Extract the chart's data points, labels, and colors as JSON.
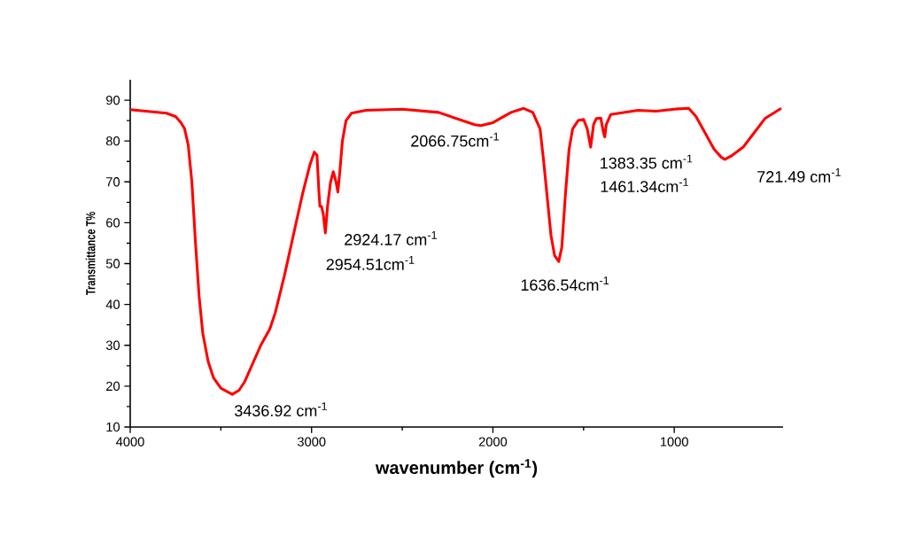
{
  "chart_data": {
    "type": "line",
    "xlabel": "wavenumber (cm$^{-1}$)",
    "ylabel": "Transmittance T%",
    "xlim": [
      4000,
      400
    ],
    "ylim": [
      10,
      95
    ],
    "xticks": [
      4000,
      3000,
      2000,
      1000
    ],
    "yticks": [
      10,
      20,
      30,
      40,
      50,
      60,
      70,
      80,
      90
    ],
    "series": [
      {
        "color": "#ff0000",
        "x": [
          4000,
          3800,
          3750,
          3720,
          3700,
          3680,
          3660,
          3640,
          3620,
          3600,
          3570,
          3540,
          3500,
          3437,
          3400,
          3370,
          3330,
          3280,
          3230,
          3200,
          3150,
          3100,
          3050,
          3010,
          2985,
          2970,
          2960,
          2954,
          2945,
          2935,
          2924,
          2912,
          2895,
          2880,
          2865,
          2855,
          2845,
          2830,
          2810,
          2780,
          2700,
          2500,
          2300,
          2200,
          2100,
          2066,
          2000,
          1900,
          1830,
          1780,
          1740,
          1720,
          1700,
          1680,
          1660,
          1637,
          1620,
          1600,
          1580,
          1560,
          1530,
          1500,
          1480,
          1461,
          1445,
          1430,
          1405,
          1390,
          1383,
          1375,
          1350,
          1200,
          1100,
          1000,
          920,
          880,
          830,
          780,
          740,
          721,
          680,
          620,
          560,
          500,
          410
        ],
        "values": [
          87.7,
          86.8,
          86,
          84.5,
          83,
          79,
          70,
          55,
          42,
          33,
          26,
          22,
          19.5,
          18,
          19,
          21,
          25,
          30,
          34,
          38,
          47,
          57,
          67,
          74,
          77.3,
          76.5,
          68,
          64,
          64,
          62,
          57.5,
          64,
          70,
          72.5,
          70,
          67.5,
          72,
          80,
          85,
          86.8,
          87.5,
          87.8,
          87,
          85.5,
          84,
          83.8,
          84.5,
          87,
          88,
          87,
          83,
          75,
          66,
          57,
          52,
          50.5,
          54,
          67,
          78,
          83,
          85,
          85.3,
          83,
          78.5,
          84,
          85.5,
          85.6,
          82,
          81,
          84,
          86.5,
          87.5,
          87.3,
          87.8,
          88,
          86,
          82,
          78,
          76,
          75.5,
          76.5,
          78.5,
          82,
          85.5,
          88
        ]
      }
    ],
    "annotations": [
      {
        "text": "3436.92 cm$^{-1}$",
        "x": 3436.92,
        "y": 18
      },
      {
        "text": "2924.17 cm$^{-1}$",
        "x": 2924.17,
        "y": 57.5
      },
      "2954.51cm$^{-1}$",
      {
        "text": "2066.75cm$^{-1}$",
        "x": 2066.75,
        "y": 83.8
      },
      {
        "text": "1636.54cm$^{-1}$",
        "x": 1636.54,
        "y": 50.5
      },
      {
        "text": "1461.34cm$^{-1}$",
        "x": 1461.34,
        "y": 78.5
      },
      {
        "text": "1383.35 cm$^{-1}$",
        "x": 1383.35,
        "y": 81
      },
      {
        "text": "721.49 cm$^{-1}$",
        "x": 721.49,
        "y": 75.5
      }
    ]
  }
}
